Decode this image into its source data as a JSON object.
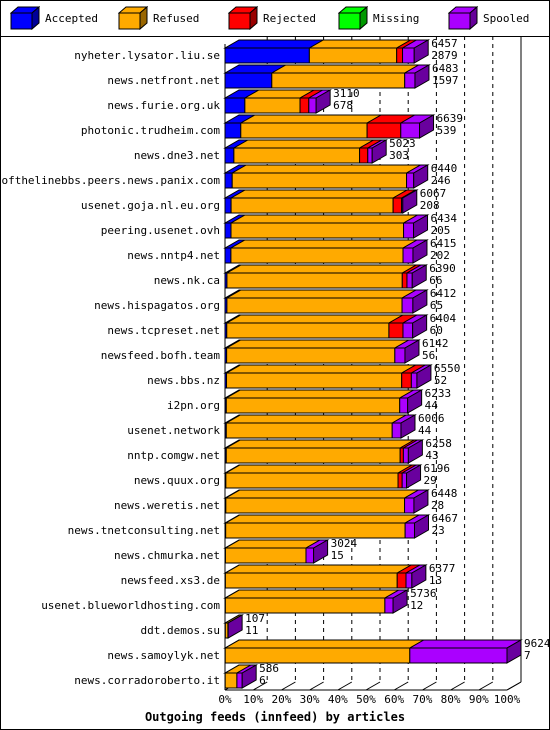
{
  "legend": [
    {
      "name": "Accepted",
      "color": "#0000ff"
    },
    {
      "name": "Refused",
      "color": "#ffaa00"
    },
    {
      "name": "Rejected",
      "color": "#ff0000"
    },
    {
      "name": "Missing",
      "color": "#00ff00"
    },
    {
      "name": "Spooled",
      "color": "#aa00ff"
    }
  ],
  "chart_data": {
    "type": "bar",
    "orientation": "horizontal",
    "stacked": true,
    "xlabel": "Outgoing feeds (innfeed) by articles",
    "x_ticks": [
      "0%",
      "10%",
      "20%",
      "30%",
      "40%",
      "50%",
      "60%",
      "70%",
      "80%",
      "90%",
      "100%"
    ],
    "xlim": [
      0,
      9624
    ],
    "grid": "vertical dashed",
    "legend_position": "top",
    "categories": [
      "nyheter.lysator.liu.se",
      "news.netfront.net",
      "news.furie.org.uk",
      "photonic.trudheim.com",
      "news.dne3.net",
      "endofthelinebbs.peers.news.panix.com",
      "usenet.goja.nl.eu.org",
      "peering.usenet.ovh",
      "news.nntp4.net",
      "news.nk.ca",
      "news.hispagatos.org",
      "news.tcpreset.net",
      "newsfeed.bofh.team",
      "news.bbs.nz",
      "i2pn.org",
      "usenet.network",
      "nntp.comgw.net",
      "news.quux.org",
      "news.weretis.net",
      "news.tnetconsulting.net",
      "news.chmurka.net",
      "newsfeed.xs3.de",
      "usenet.blueworldhosting.com",
      "ddt.demos.su",
      "news.samoylyk.net",
      "news.corradoroberto.it"
    ],
    "totals": [
      6457,
      6483,
      3110,
      6639,
      5023,
      6440,
      6067,
      6434,
      6415,
      6390,
      6412,
      6404,
      6142,
      6550,
      6233,
      6006,
      6258,
      6196,
      6448,
      6467,
      3024,
      6377,
      5736,
      107,
      9624,
      586
    ],
    "accepted_counts": [
      2879,
      1597,
      678,
      539,
      303,
      246,
      208,
      205,
      202,
      66,
      65,
      60,
      56,
      52,
      44,
      44,
      43,
      29,
      28,
      23,
      15,
      13,
      12,
      11,
      7,
      6
    ],
    "series": [
      {
        "name": "Accepted",
        "values": [
          2879,
          1597,
          678,
          539,
          303,
          246,
          208,
          205,
          202,
          66,
          65,
          60,
          56,
          52,
          44,
          44,
          43,
          29,
          28,
          23,
          15,
          13,
          12,
          11,
          7,
          6
        ]
      },
      {
        "name": "Refused",
        "values": [
          2980,
          4536,
          1882,
          4310,
          4290,
          5950,
          5529,
          5889,
          5873,
          5984,
          5977,
          5534,
          5740,
          5978,
          5919,
          5662,
          5935,
          5877,
          6100,
          6124,
          2749,
          5864,
          5444,
          89,
          6300,
          400
        ]
      },
      {
        "name": "Rejected",
        "values": [
          200,
          0,
          300,
          1150,
          280,
          0,
          290,
          0,
          0,
          160,
          0,
          480,
          0,
          330,
          0,
          0,
          110,
          140,
          0,
          0,
          0,
          300,
          0,
          0,
          0,
          0
        ]
      },
      {
        "name": "Missing",
        "values": [
          0,
          0,
          0,
          0,
          0,
          0,
          0,
          0,
          0,
          0,
          0,
          0,
          0,
          0,
          0,
          0,
          0,
          0,
          0,
          0,
          0,
          0,
          0,
          0,
          0,
          0
        ]
      },
      {
        "name": "Spooled",
        "values": [
          398,
          350,
          250,
          640,
          150,
          244,
          40,
          340,
          340,
          180,
          370,
          330,
          346,
          190,
          270,
          300,
          170,
          150,
          320,
          320,
          260,
          200,
          280,
          7,
          3317,
          180
        ]
      }
    ]
  }
}
